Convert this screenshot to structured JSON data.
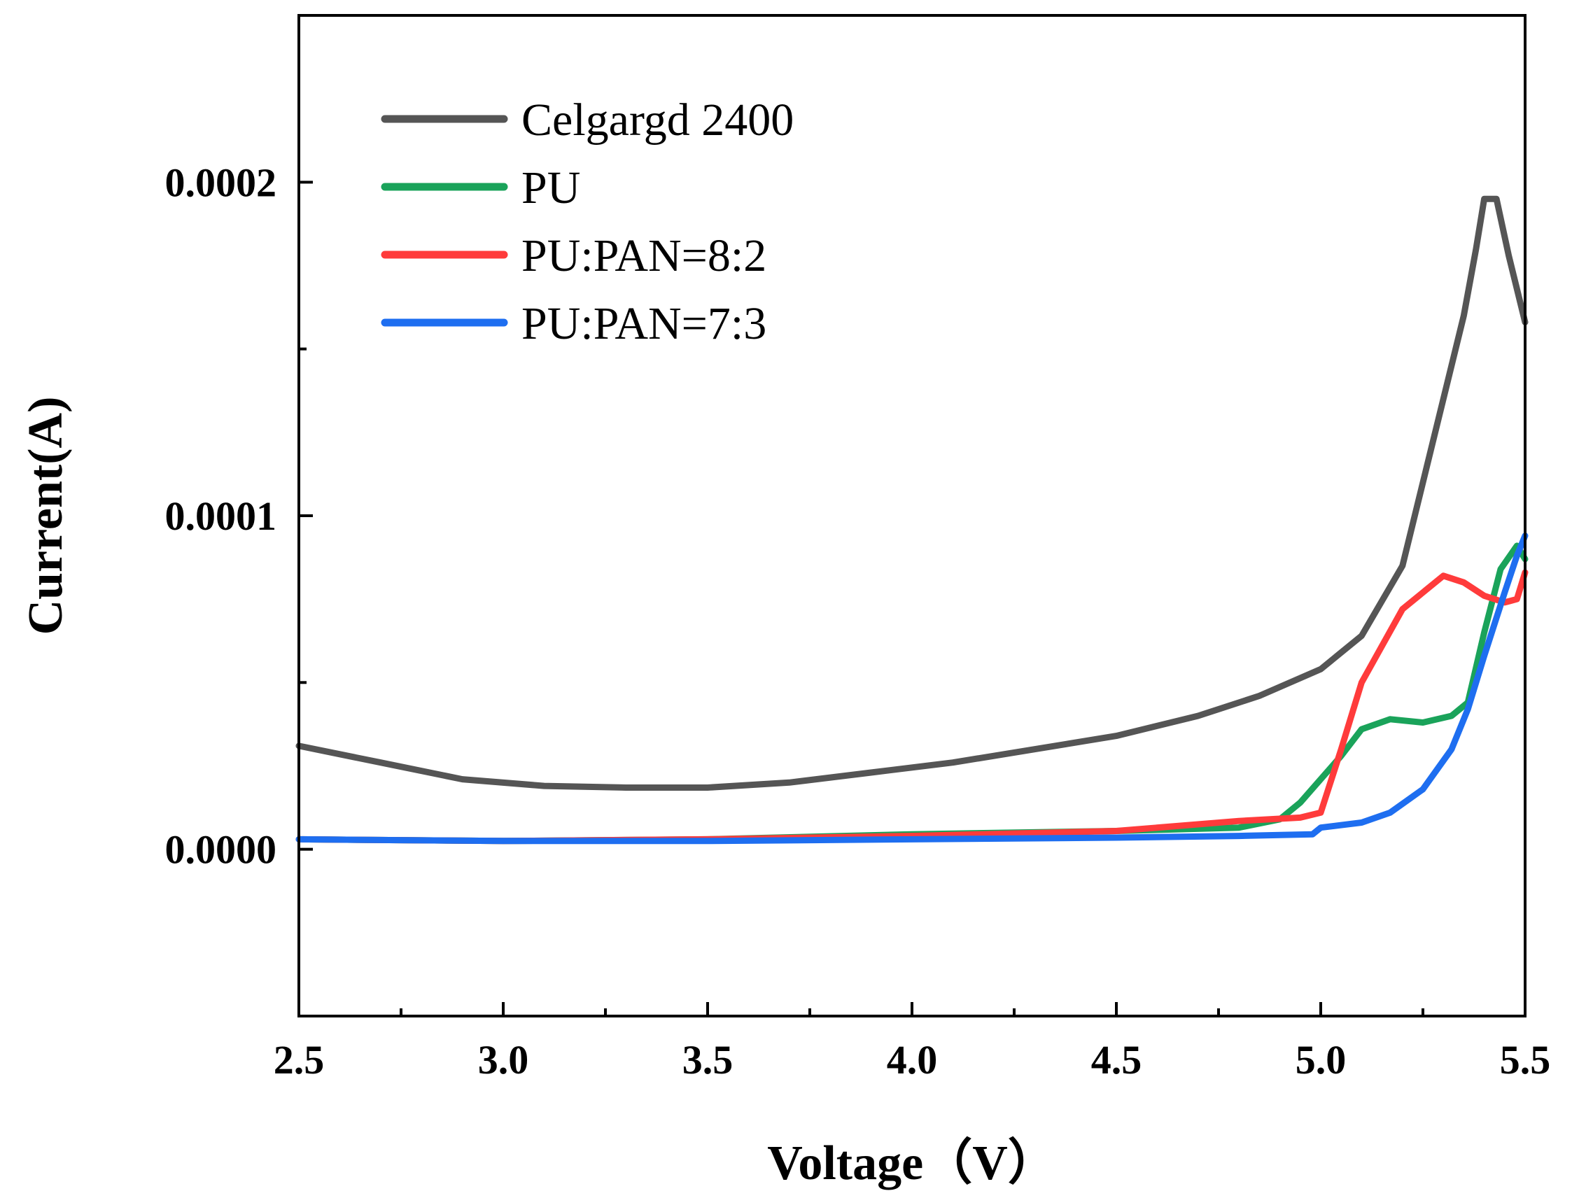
{
  "chart_data": {
    "type": "line",
    "xlabel": "Voltage（V）",
    "ylabel": "Current(A)",
    "xlim": [
      2.5,
      5.5
    ],
    "ylim": [
      -5e-05,
      0.00025
    ],
    "x_ticks": [
      "2.5",
      "3.0",
      "3.5",
      "4.0",
      "4.5",
      "5.0",
      "5.5"
    ],
    "y_ticks": [
      "0.0000",
      "0.0001",
      "0.0002"
    ],
    "grid": false,
    "legend_position": "top-left",
    "series": [
      {
        "name": "Celgargd 2400",
        "color": "#555555",
        "points": [
          [
            2.5,
            3.1e-05
          ],
          [
            2.7,
            2.6e-05
          ],
          [
            2.9,
            2.1e-05
          ],
          [
            3.1,
            1.9e-05
          ],
          [
            3.3,
            1.85e-05
          ],
          [
            3.5,
            1.85e-05
          ],
          [
            3.7,
            2e-05
          ],
          [
            3.9,
            2.3e-05
          ],
          [
            4.1,
            2.6e-05
          ],
          [
            4.3,
            3e-05
          ],
          [
            4.5,
            3.4e-05
          ],
          [
            4.7,
            4e-05
          ],
          [
            4.85,
            4.6e-05
          ],
          [
            5.0,
            5.4e-05
          ],
          [
            5.1,
            6.4e-05
          ],
          [
            5.2,
            8.5e-05
          ],
          [
            5.3,
            0.000135
          ],
          [
            5.35,
            0.00016
          ],
          [
            5.38,
            0.00018
          ],
          [
            5.4,
            0.000195
          ],
          [
            5.43,
            0.000195
          ],
          [
            5.46,
            0.000178
          ],
          [
            5.5,
            0.000158
          ]
        ]
      },
      {
        "name": "PU",
        "color": "#1aa35a",
        "points": [
          [
            2.5,
            3e-06
          ],
          [
            3.0,
            2.5e-06
          ],
          [
            3.5,
            3e-06
          ],
          [
            4.0,
            4.5e-06
          ],
          [
            4.5,
            5.5e-06
          ],
          [
            4.8,
            6.5e-06
          ],
          [
            4.9,
            9e-06
          ],
          [
            4.95,
            1.4e-05
          ],
          [
            5.05,
            2.8e-05
          ],
          [
            5.1,
            3.6e-05
          ],
          [
            5.17,
            3.9e-05
          ],
          [
            5.25,
            3.8e-05
          ],
          [
            5.32,
            4e-05
          ],
          [
            5.36,
            4.4e-05
          ],
          [
            5.4,
            6.5e-05
          ],
          [
            5.44,
            8.4e-05
          ],
          [
            5.48,
            9.1e-05
          ],
          [
            5.5,
            8.7e-05
          ]
        ]
      },
      {
        "name": "PU:PAN=8:2",
        "color": "#ff3b3b",
        "points": [
          [
            2.5,
            3e-06
          ],
          [
            3.0,
            2.5e-06
          ],
          [
            3.5,
            3e-06
          ],
          [
            4.0,
            4e-06
          ],
          [
            4.5,
            5.5e-06
          ],
          [
            4.8,
            8.5e-06
          ],
          [
            4.95,
            9.5e-06
          ],
          [
            5.0,
            1.1e-05
          ],
          [
            5.05,
            3e-05
          ],
          [
            5.1,
            5e-05
          ],
          [
            5.2,
            7.2e-05
          ],
          [
            5.3,
            8.2e-05
          ],
          [
            5.35,
            8e-05
          ],
          [
            5.4,
            7.6e-05
          ],
          [
            5.45,
            7.4e-05
          ],
          [
            5.48,
            7.5e-05
          ],
          [
            5.5,
            8.3e-05
          ]
        ]
      },
      {
        "name": "PU:PAN=7:3",
        "color": "#1e6ef0",
        "points": [
          [
            2.5,
            3e-06
          ],
          [
            3.0,
            2.5e-06
          ],
          [
            3.5,
            2.5e-06
          ],
          [
            4.0,
            3e-06
          ],
          [
            4.5,
            3.5e-06
          ],
          [
            4.8,
            4e-06
          ],
          [
            4.98,
            4.5e-06
          ],
          [
            5.0,
            6.5e-06
          ],
          [
            5.1,
            8e-06
          ],
          [
            5.17,
            1.1e-05
          ],
          [
            5.25,
            1.8e-05
          ],
          [
            5.32,
            3e-05
          ],
          [
            5.36,
            4.2e-05
          ],
          [
            5.4,
            5.8e-05
          ],
          [
            5.45,
            7.7e-05
          ],
          [
            5.48,
            8.8e-05
          ],
          [
            5.5,
            9.4e-05
          ]
        ]
      }
    ]
  }
}
